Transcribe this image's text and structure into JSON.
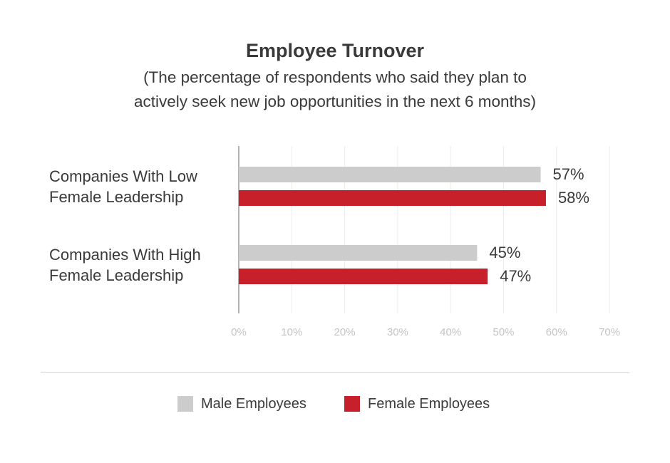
{
  "colors": {
    "male": "#cccccc",
    "female": "#c8202a",
    "axis": "#9a9a9a",
    "grid": "#ececec"
  },
  "chart_data": {
    "type": "bar",
    "orientation": "horizontal",
    "title": "Employee Turnover",
    "subtitle_lines": [
      "(The percentage of respondents who said they plan to",
      "actively seek new job opportunities in the next 6 months)"
    ],
    "categories": [
      {
        "line1": "Companies With Low",
        "line2": "Female Leadership"
      },
      {
        "line1": "Companies With High",
        "line2": "Female Leadership"
      }
    ],
    "series": [
      {
        "name": "Male Employees",
        "values": [
          57,
          45
        ],
        "labels": [
          "57%",
          "45%"
        ]
      },
      {
        "name": "Female Employees",
        "values": [
          58,
          47
        ],
        "labels": [
          "58%",
          "47%"
        ]
      }
    ],
    "xlim": [
      0,
      70
    ],
    "xticks": [
      0,
      10,
      20,
      30,
      40,
      50,
      60,
      70
    ],
    "xtick_labels": [
      "0%",
      "10%",
      "20%",
      "30%",
      "40%",
      "50%",
      "60%",
      "70%"
    ],
    "grid": true,
    "legend_position": "bottom"
  }
}
